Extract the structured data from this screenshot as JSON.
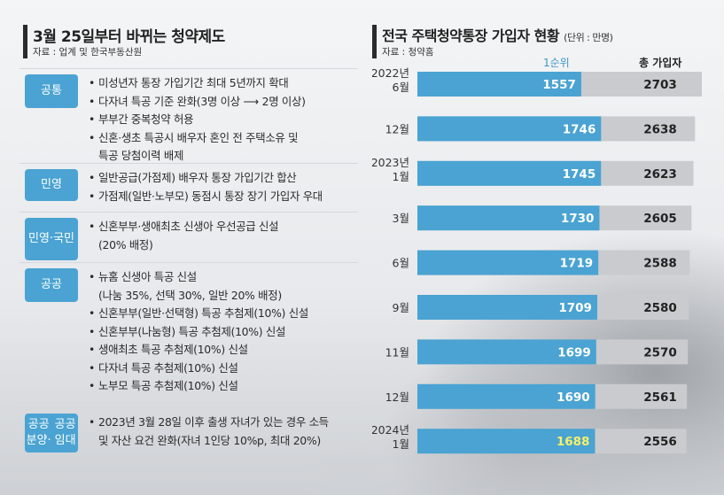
{
  "left": {
    "title": "3월 25일부터 바뀌는 청약제도",
    "source": "자료 : 업계 및 한국부동산원",
    "sections": [
      {
        "badge": [
          "공통"
        ],
        "items": [
          "미성년자 통장 가입기간 최대 5년까지 확대",
          "다자녀 특공 기준 완화(3명 이상 ⟶ 2명 이상)",
          "부부간 중복청약 허용",
          "신혼·생초 특공시 배우자 혼인 전 주택소유 및",
          "특공 당첨이력 배제"
        ],
        "cont": [
          4
        ]
      },
      {
        "badge": [
          "민영"
        ],
        "items": [
          "일반공급(가점제) 배우자 통장 가입기간 합산",
          "가점제(일반·노부모) 동점시 통장 장기 가입자 우대"
        ],
        "cont": []
      },
      {
        "badge": [
          "민영·",
          "국민"
        ],
        "items": [
          "신혼부부·생애최초 신생아 우선공급 신설",
          "(20% 배정)"
        ],
        "cont": [
          1
        ]
      },
      {
        "badge": [
          "공공"
        ],
        "items": [
          "뉴홈 신생아 특공 신설",
          "(나눔 35%, 선택 30%, 일반 20% 배정)",
          "신혼부부(일반·선택형) 특공 추첨제(10%) 신설",
          "신혼부부(나눔형) 특공 추첨제(10%) 신설",
          "생애최초 특공 추첨제(10%) 신설",
          "다자녀 특공 추첨제(10%) 신설",
          "노부모 특공 추첨제(10%) 신설"
        ],
        "cont": [
          1
        ]
      },
      {
        "badge": [
          "공공분양·",
          "공공임대"
        ],
        "items": [
          "2023년 3월 28일 이후 출생 자녀가 있는 경우 소득",
          "및 자산 요건 완화(자녀 1인당 10%p, 최대 20%)"
        ],
        "cont": [
          1
        ]
      }
    ]
  },
  "right": {
    "title": "전국 주택청약통장 가입자 현황",
    "unit": "(단위 : 만명)",
    "source": "자료 : 청약홈"
  },
  "chart_data": {
    "type": "bar",
    "title": "전국 주택청약통장 가입자 현황",
    "unit": "(단위 : 만명)",
    "categories": [
      [
        "2022년",
        "6월"
      ],
      [
        "12월"
      ],
      [
        "2023년",
        "1월"
      ],
      [
        "3월"
      ],
      [
        "6월"
      ],
      [
        "9월"
      ],
      [
        "11월"
      ],
      [
        "12월"
      ],
      [
        "2024년",
        "1월"
      ]
    ],
    "series": [
      {
        "name": "1순위",
        "values": [
          1557,
          1746,
          1745,
          1730,
          1719,
          1709,
          1699,
          1690,
          1688
        ],
        "color": "#4aa3d2"
      },
      {
        "name": "총 가입자",
        "values": [
          2703,
          2638,
          2623,
          2605,
          2588,
          2580,
          2570,
          2561,
          2556
        ],
        "color": "#c9cbce"
      }
    ],
    "highlight_color": "#f4f06a",
    "grid": false
  }
}
